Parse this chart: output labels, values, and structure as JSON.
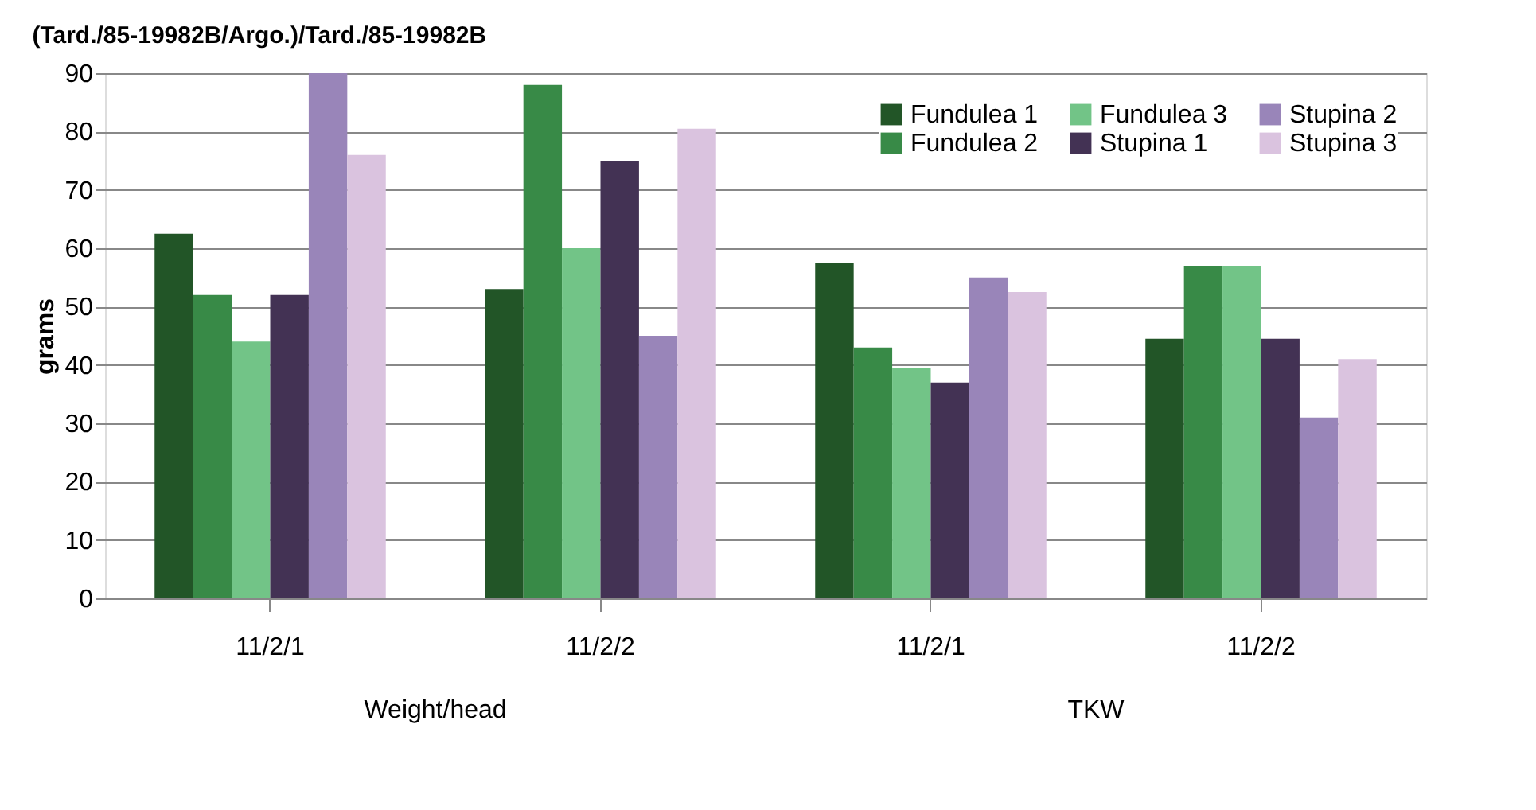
{
  "chart_data": {
    "type": "bar",
    "title": "(Tard./85-19982B/Argo.)/Tard./85-19982B",
    "ylabel": "grams",
    "categories": [
      "11/2/1",
      "11/2/2",
      "11/2/1",
      "11/2/2"
    ],
    "annotations": [
      "Weight/head",
      "TKW"
    ],
    "series": [
      {
        "name": "Fundulea 1",
        "color": "#225527",
        "values": [
          62.5,
          53,
          57.5,
          44.5
        ]
      },
      {
        "name": "Fundulea 2",
        "color": "#388a47",
        "values": [
          52,
          88,
          43,
          57
        ]
      },
      {
        "name": "Fundulea 3",
        "color": "#72c487",
        "values": [
          44,
          60,
          39.5,
          57
        ]
      },
      {
        "name": "Stupina 1",
        "color": "#433254",
        "values": [
          52,
          75,
          37,
          44.5
        ]
      },
      {
        "name": "Stupina 2",
        "color": "#9985b9",
        "values": [
          90,
          45,
          55,
          31
        ]
      },
      {
        "name": "Stupina 3",
        "color": "#dac3df",
        "values": [
          76,
          80.5,
          52.5,
          41
        ]
      }
    ],
    "ylim": [
      0,
      90
    ],
    "yticks": [
      0,
      10,
      20,
      30,
      40,
      50,
      60,
      70,
      80,
      90
    ],
    "grid": "y",
    "legend": "top right"
  }
}
